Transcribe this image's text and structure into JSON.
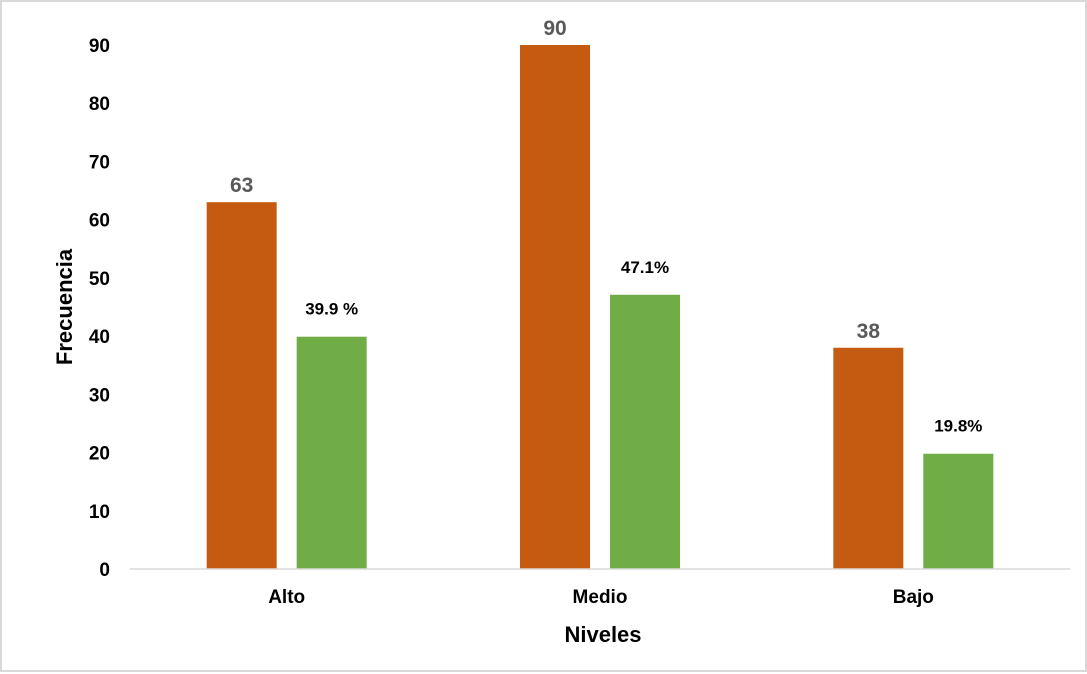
{
  "chart_data": {
    "type": "bar",
    "categories": [
      "Alto",
      "Medio",
      "Bajo"
    ],
    "series": [
      {
        "values": [
          63,
          90,
          38
        ],
        "color": "#c55a11",
        "data_labels": [
          "63",
          "90",
          "38"
        ]
      },
      {
        "values": [
          39.9,
          47.1,
          19.8
        ],
        "color": "#70ad47",
        "data_labels": [
          "39.9 %",
          "47.1%",
          "19.8%"
        ]
      }
    ],
    "xlabel": "Niveles",
    "ylabel": "Frecuencia",
    "ylim": [
      0,
      90
    ],
    "yticks": [
      0,
      10,
      20,
      30,
      40,
      50,
      60,
      70,
      80,
      90
    ],
    "grid": false,
    "legend": "none"
  }
}
